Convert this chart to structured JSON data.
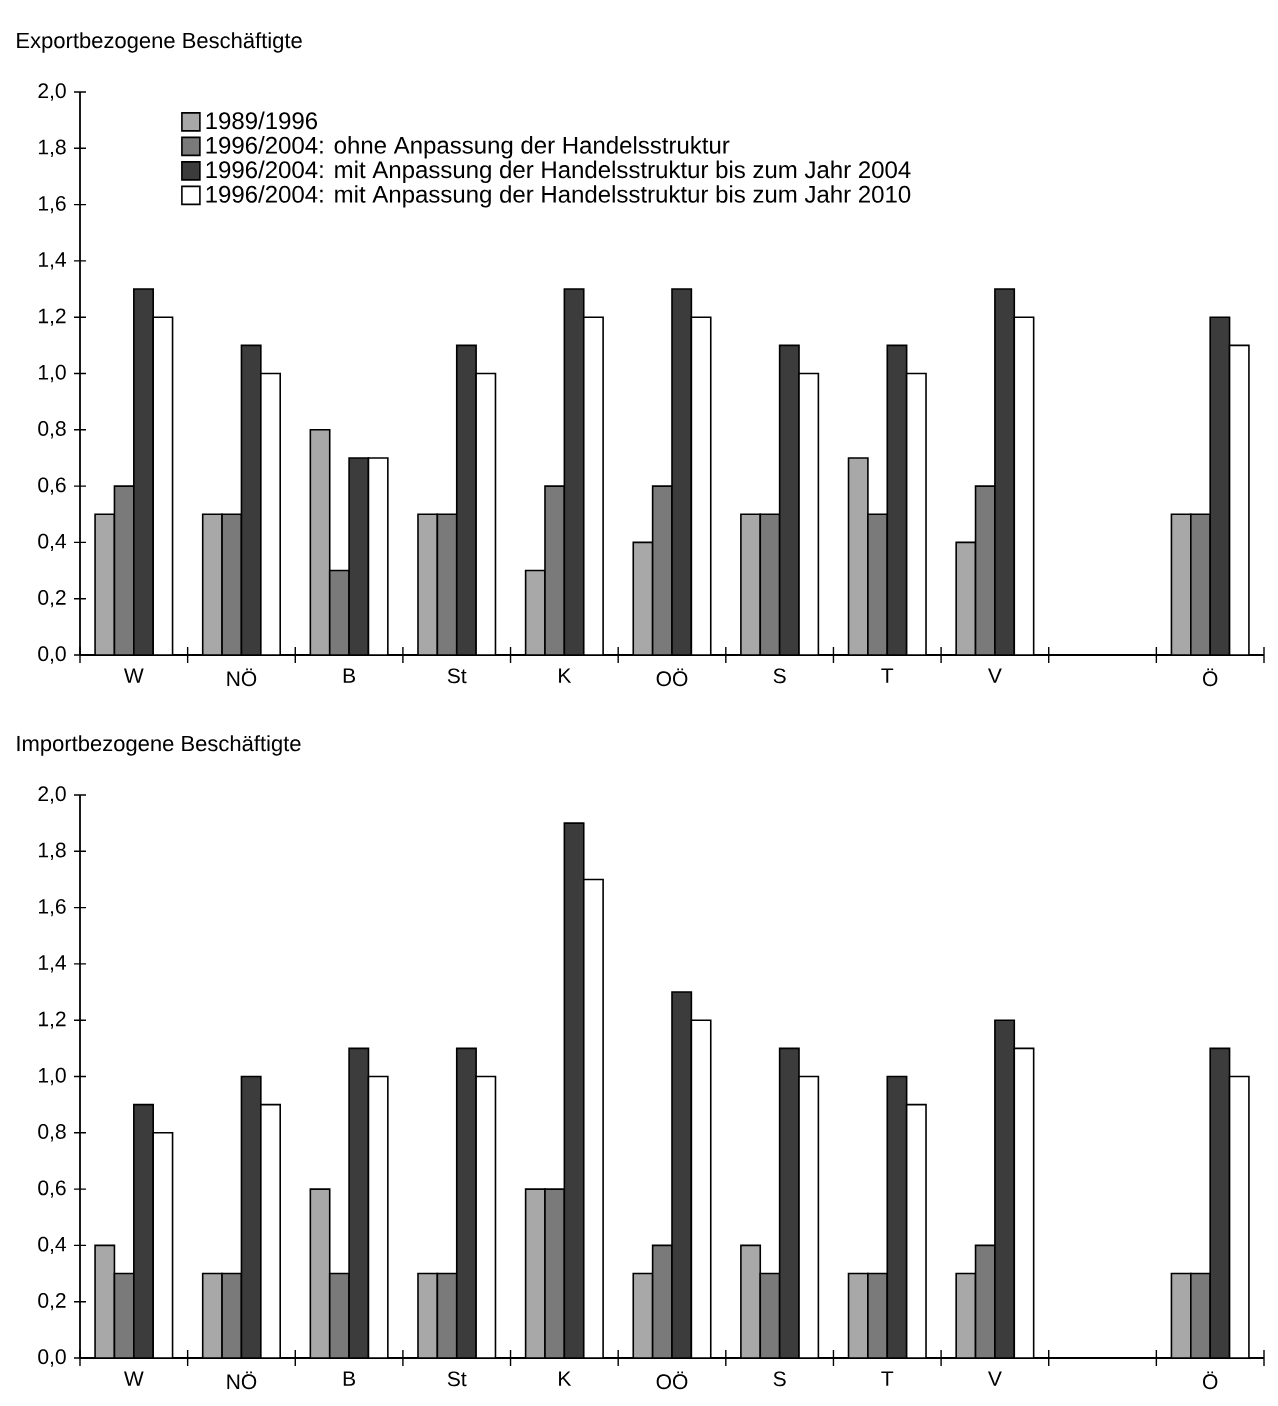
{
  "chart_data": [
    {
      "type": "bar",
      "title": "Exportbezogene Beschäftigte",
      "categories": [
        "W",
        "NÖ",
        "B",
        "St",
        "K",
        "OÖ",
        "S",
        "T",
        "V",
        null,
        "Ö"
      ],
      "ylim": [
        0,
        2
      ],
      "yticks": [
        {
          "value": 0,
          "label": "0,0"
        },
        {
          "value": 0.2,
          "label": "0,2"
        },
        {
          "value": 0.4,
          "label": "0,4"
        },
        {
          "value": 0.6,
          "label": "0,6"
        },
        {
          "value": 0.8,
          "label": "0,8"
        },
        {
          "value": 1,
          "label": "1,0"
        },
        {
          "value": 1.2,
          "label": "1,2"
        },
        {
          "value": 1.4,
          "label": "1,4"
        },
        {
          "value": 1.6,
          "label": "1,6"
        },
        {
          "value": 1.8,
          "label": "1,8"
        },
        {
          "value": 2,
          "label": "2,0"
        }
      ],
      "legend": "top left",
      "series": [
        {
          "name": "1989/1996",
          "color": "#a8a8a8",
          "values": [
            0.5,
            0.5,
            0.8,
            0.5,
            0.3,
            0.4,
            0.5,
            0.7,
            0.4,
            null,
            0.5
          ]
        },
        {
          "name": "1996/2004: ohne Anpassung der Handelsstruktur",
          "color": "#7a7a7a",
          "values": [
            0.6,
            0.5,
            0.3,
            0.5,
            0.6,
            0.6,
            0.5,
            0.5,
            0.6,
            null,
            0.5
          ]
        },
        {
          "name": "1996/2004: mit Anpassung der Handelsstruktur bis zum Jahr 2004",
          "color": "#3c3c3c",
          "values": [
            1.3,
            1.1,
            0.7,
            1.1,
            1.3,
            1.3,
            1.1,
            1.1,
            1.3,
            null,
            1.2
          ]
        },
        {
          "name": "1996/2004: mit Anpassung der Handelsstruktur bis zum Jahr 2010",
          "color": "#ffffff",
          "values": [
            1.2,
            1.0,
            0.7,
            1.0,
            1.2,
            1.2,
            1.0,
            1.0,
            1.2,
            null,
            1.1
          ]
        }
      ]
    },
    {
      "type": "bar",
      "title": "Importbezogene Beschäftigte",
      "categories": [
        "W",
        "NÖ",
        "B",
        "St",
        "K",
        "OÖ",
        "S",
        "T",
        "V",
        null,
        "Ö"
      ],
      "ylim": [
        0,
        2
      ],
      "yticks": [
        {
          "value": 0,
          "label": "0,0"
        },
        {
          "value": 0.2,
          "label": "0,2"
        },
        {
          "value": 0.4,
          "label": "0,4"
        },
        {
          "value": 0.6,
          "label": "0,6"
        },
        {
          "value": 0.8,
          "label": "0,8"
        },
        {
          "value": 1,
          "label": "1,0"
        },
        {
          "value": 1.2,
          "label": "1,2"
        },
        {
          "value": 1.4,
          "label": "1,4"
        },
        {
          "value": 1.6,
          "label": "1,6"
        },
        {
          "value": 1.8,
          "label": "1,8"
        },
        {
          "value": 2,
          "label": "2,0"
        }
      ],
      "series": [
        {
          "color": "#a8a8a8",
          "values": [
            0.4,
            0.3,
            0.6,
            0.3,
            0.6,
            0.3,
            0.4,
            0.3,
            0.3,
            null,
            0.3
          ]
        },
        {
          "color": "#7a7a7a",
          "values": [
            0.3,
            0.3,
            0.3,
            0.3,
            0.6,
            0.4,
            0.3,
            0.3,
            0.4,
            null,
            0.3
          ]
        },
        {
          "color": "#3c3c3c",
          "values": [
            0.9,
            1.0,
            1.1,
            1.1,
            1.9,
            1.3,
            1.1,
            1.0,
            1.2,
            null,
            1.1
          ]
        },
        {
          "color": "#ffffff",
          "values": [
            0.8,
            0.9,
            1.0,
            1.0,
            1.7,
            1.2,
            1.0,
            0.9,
            1.1,
            null,
            1.0
          ]
        }
      ]
    }
  ]
}
